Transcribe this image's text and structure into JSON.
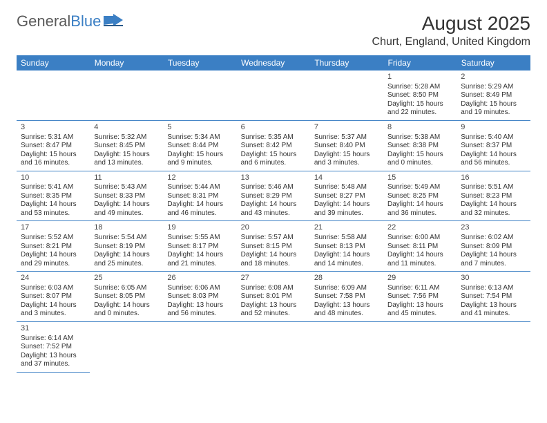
{
  "logo": {
    "text1": "General",
    "text2": "Blue"
  },
  "title": "August 2025",
  "location": "Churt, England, United Kingdom",
  "colors": {
    "header_bg": "#3b7fc4",
    "header_fg": "#ffffff",
    "text": "#333333",
    "rule": "#3b7fc4"
  },
  "day_headers": [
    "Sunday",
    "Monday",
    "Tuesday",
    "Wednesday",
    "Thursday",
    "Friday",
    "Saturday"
  ],
  "weeks": [
    [
      null,
      null,
      null,
      null,
      null,
      {
        "n": "1",
        "sunrise": "Sunrise: 5:28 AM",
        "sunset": "Sunset: 8:50 PM",
        "day1": "Daylight: 15 hours",
        "day2": "and 22 minutes."
      },
      {
        "n": "2",
        "sunrise": "Sunrise: 5:29 AM",
        "sunset": "Sunset: 8:49 PM",
        "day1": "Daylight: 15 hours",
        "day2": "and 19 minutes."
      }
    ],
    [
      {
        "n": "3",
        "sunrise": "Sunrise: 5:31 AM",
        "sunset": "Sunset: 8:47 PM",
        "day1": "Daylight: 15 hours",
        "day2": "and 16 minutes."
      },
      {
        "n": "4",
        "sunrise": "Sunrise: 5:32 AM",
        "sunset": "Sunset: 8:45 PM",
        "day1": "Daylight: 15 hours",
        "day2": "and 13 minutes."
      },
      {
        "n": "5",
        "sunrise": "Sunrise: 5:34 AM",
        "sunset": "Sunset: 8:44 PM",
        "day1": "Daylight: 15 hours",
        "day2": "and 9 minutes."
      },
      {
        "n": "6",
        "sunrise": "Sunrise: 5:35 AM",
        "sunset": "Sunset: 8:42 PM",
        "day1": "Daylight: 15 hours",
        "day2": "and 6 minutes."
      },
      {
        "n": "7",
        "sunrise": "Sunrise: 5:37 AM",
        "sunset": "Sunset: 8:40 PM",
        "day1": "Daylight: 15 hours",
        "day2": "and 3 minutes."
      },
      {
        "n": "8",
        "sunrise": "Sunrise: 5:38 AM",
        "sunset": "Sunset: 8:38 PM",
        "day1": "Daylight: 15 hours",
        "day2": "and 0 minutes."
      },
      {
        "n": "9",
        "sunrise": "Sunrise: 5:40 AM",
        "sunset": "Sunset: 8:37 PM",
        "day1": "Daylight: 14 hours",
        "day2": "and 56 minutes."
      }
    ],
    [
      {
        "n": "10",
        "sunrise": "Sunrise: 5:41 AM",
        "sunset": "Sunset: 8:35 PM",
        "day1": "Daylight: 14 hours",
        "day2": "and 53 minutes."
      },
      {
        "n": "11",
        "sunrise": "Sunrise: 5:43 AM",
        "sunset": "Sunset: 8:33 PM",
        "day1": "Daylight: 14 hours",
        "day2": "and 49 minutes."
      },
      {
        "n": "12",
        "sunrise": "Sunrise: 5:44 AM",
        "sunset": "Sunset: 8:31 PM",
        "day1": "Daylight: 14 hours",
        "day2": "and 46 minutes."
      },
      {
        "n": "13",
        "sunrise": "Sunrise: 5:46 AM",
        "sunset": "Sunset: 8:29 PM",
        "day1": "Daylight: 14 hours",
        "day2": "and 43 minutes."
      },
      {
        "n": "14",
        "sunrise": "Sunrise: 5:48 AM",
        "sunset": "Sunset: 8:27 PM",
        "day1": "Daylight: 14 hours",
        "day2": "and 39 minutes."
      },
      {
        "n": "15",
        "sunrise": "Sunrise: 5:49 AM",
        "sunset": "Sunset: 8:25 PM",
        "day1": "Daylight: 14 hours",
        "day2": "and 36 minutes."
      },
      {
        "n": "16",
        "sunrise": "Sunrise: 5:51 AM",
        "sunset": "Sunset: 8:23 PM",
        "day1": "Daylight: 14 hours",
        "day2": "and 32 minutes."
      }
    ],
    [
      {
        "n": "17",
        "sunrise": "Sunrise: 5:52 AM",
        "sunset": "Sunset: 8:21 PM",
        "day1": "Daylight: 14 hours",
        "day2": "and 29 minutes."
      },
      {
        "n": "18",
        "sunrise": "Sunrise: 5:54 AM",
        "sunset": "Sunset: 8:19 PM",
        "day1": "Daylight: 14 hours",
        "day2": "and 25 minutes."
      },
      {
        "n": "19",
        "sunrise": "Sunrise: 5:55 AM",
        "sunset": "Sunset: 8:17 PM",
        "day1": "Daylight: 14 hours",
        "day2": "and 21 minutes."
      },
      {
        "n": "20",
        "sunrise": "Sunrise: 5:57 AM",
        "sunset": "Sunset: 8:15 PM",
        "day1": "Daylight: 14 hours",
        "day2": "and 18 minutes."
      },
      {
        "n": "21",
        "sunrise": "Sunrise: 5:58 AM",
        "sunset": "Sunset: 8:13 PM",
        "day1": "Daylight: 14 hours",
        "day2": "and 14 minutes."
      },
      {
        "n": "22",
        "sunrise": "Sunrise: 6:00 AM",
        "sunset": "Sunset: 8:11 PM",
        "day1": "Daylight: 14 hours",
        "day2": "and 11 minutes."
      },
      {
        "n": "23",
        "sunrise": "Sunrise: 6:02 AM",
        "sunset": "Sunset: 8:09 PM",
        "day1": "Daylight: 14 hours",
        "day2": "and 7 minutes."
      }
    ],
    [
      {
        "n": "24",
        "sunrise": "Sunrise: 6:03 AM",
        "sunset": "Sunset: 8:07 PM",
        "day1": "Daylight: 14 hours",
        "day2": "and 3 minutes."
      },
      {
        "n": "25",
        "sunrise": "Sunrise: 6:05 AM",
        "sunset": "Sunset: 8:05 PM",
        "day1": "Daylight: 14 hours",
        "day2": "and 0 minutes."
      },
      {
        "n": "26",
        "sunrise": "Sunrise: 6:06 AM",
        "sunset": "Sunset: 8:03 PM",
        "day1": "Daylight: 13 hours",
        "day2": "and 56 minutes."
      },
      {
        "n": "27",
        "sunrise": "Sunrise: 6:08 AM",
        "sunset": "Sunset: 8:01 PM",
        "day1": "Daylight: 13 hours",
        "day2": "and 52 minutes."
      },
      {
        "n": "28",
        "sunrise": "Sunrise: 6:09 AM",
        "sunset": "Sunset: 7:58 PM",
        "day1": "Daylight: 13 hours",
        "day2": "and 48 minutes."
      },
      {
        "n": "29",
        "sunrise": "Sunrise: 6:11 AM",
        "sunset": "Sunset: 7:56 PM",
        "day1": "Daylight: 13 hours",
        "day2": "and 45 minutes."
      },
      {
        "n": "30",
        "sunrise": "Sunrise: 6:13 AM",
        "sunset": "Sunset: 7:54 PM",
        "day1": "Daylight: 13 hours",
        "day2": "and 41 minutes."
      }
    ],
    [
      {
        "n": "31",
        "sunrise": "Sunrise: 6:14 AM",
        "sunset": "Sunset: 7:52 PM",
        "day1": "Daylight: 13 hours",
        "day2": "and 37 minutes."
      },
      null,
      null,
      null,
      null,
      null,
      null
    ]
  ]
}
